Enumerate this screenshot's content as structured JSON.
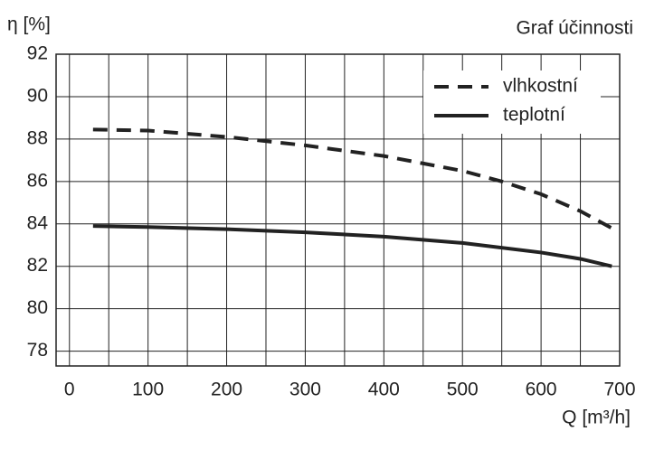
{
  "chart_data": {
    "type": "line",
    "title": "Graf účinnosti",
    "ylabel": "η [%]",
    "xlabel": "Q [m³/h]",
    "xlim": [
      -17,
      700
    ],
    "ylim": [
      77.3,
      92
    ],
    "xticks": [
      0,
      100,
      200,
      300,
      400,
      500,
      600,
      700
    ],
    "xgrid": [
      0,
      50,
      100,
      150,
      200,
      250,
      300,
      350,
      400,
      450,
      500,
      550,
      600,
      650,
      700
    ],
    "yticks": [
      78,
      80,
      82,
      84,
      86,
      88,
      90,
      92
    ],
    "grid": true,
    "legend": "upper right",
    "series": [
      {
        "name": "vlhkostní",
        "color": "#222222",
        "style": "dashed",
        "x": [
          30,
          100,
          200,
          300,
          400,
          500,
          550,
          600,
          650,
          690
        ],
        "values": [
          88.45,
          88.4,
          88.1,
          87.7,
          87.2,
          86.5,
          86.0,
          85.4,
          84.6,
          83.8
        ]
      },
      {
        "name": "teplotní",
        "color": "#222222",
        "style": "solid",
        "x": [
          30,
          100,
          200,
          300,
          400,
          500,
          600,
          650,
          690
        ],
        "values": [
          83.9,
          83.85,
          83.75,
          83.6,
          83.4,
          83.1,
          82.65,
          82.35,
          82.0
        ]
      }
    ]
  }
}
